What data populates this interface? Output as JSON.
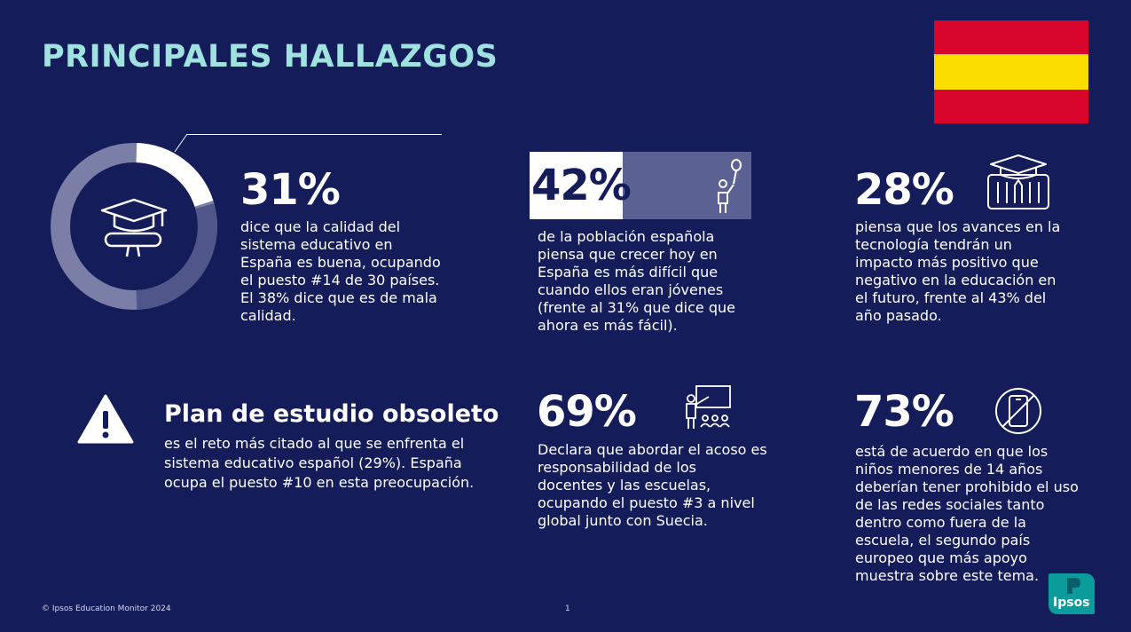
{
  "header": {
    "title": "PRINCIPALES HALLAZGOS"
  },
  "colors": {
    "background": "#141d5a",
    "title": "#9fe2e0",
    "flag_red": "#d8062c",
    "flag_yellow": "#fbde00",
    "ring_light": "#7b7fa7",
    "ring_dark": "#50568a",
    "box_gray": "#5b6193",
    "logo": "#0a9b9a"
  },
  "stat_quality": {
    "value": "31%",
    "ring_highlight_fraction": 0.31,
    "icon": "graduation-cap-diploma-icon",
    "text": [
      "dice que la calidad del",
      "sistema educativo en",
      "España es buena, ocupando",
      "el puesto #14 de 30 países.",
      "El 38% dice que es de mala",
      "calidad."
    ]
  },
  "stat_growing_up": {
    "value": "42%",
    "icon": "child-balloon-icon",
    "text": [
      "de la población española",
      "piensa que crecer hoy en",
      "España es más difícil que",
      "cuando ellos eran jóvenes",
      "(frente al 31% que dice que",
      "ahora es más fácil)."
    ]
  },
  "stat_technology": {
    "value": "28%",
    "icon": "graduation-school-icon",
    "text": [
      "piensa que los avances en la",
      "tecnología tendrán un",
      "impacto más positivo que",
      "negativo en la educación en",
      "el futuro, frente al 43% del",
      "año pasado."
    ]
  },
  "plan": {
    "icon": "warning-icon",
    "title": "Plan de estudio obsoleto",
    "text": [
      "es el reto más citado al que se enfrenta el",
      "sistema educativo español (29%). España",
      "ocupa el puesto #10 en esta preocupación."
    ]
  },
  "stat_bullying": {
    "value": "69%",
    "icon": "teacher-class-icon",
    "text": [
      "Declara que abordar el acoso es",
      "responsabilidad de los",
      "docentes y las escuelas,",
      "ocupando el puesto #3 a nivel",
      "global junto con Suecia."
    ]
  },
  "stat_social": {
    "value": "73%",
    "icon": "no-phone-icon",
    "text": [
      "está de acuerdo en que los",
      "niños menores de 14 años",
      "deberían tener prohibido el uso",
      "de las redes sociales tanto",
      "dentro como fuera de la",
      "escuela, el segundo país",
      "europeo que más apoyo",
      "muestra sobre este tema."
    ]
  },
  "footer": {
    "copyright": "© Ipsos Education Monitor 2024",
    "page": "1",
    "logo": "Ipsos"
  }
}
